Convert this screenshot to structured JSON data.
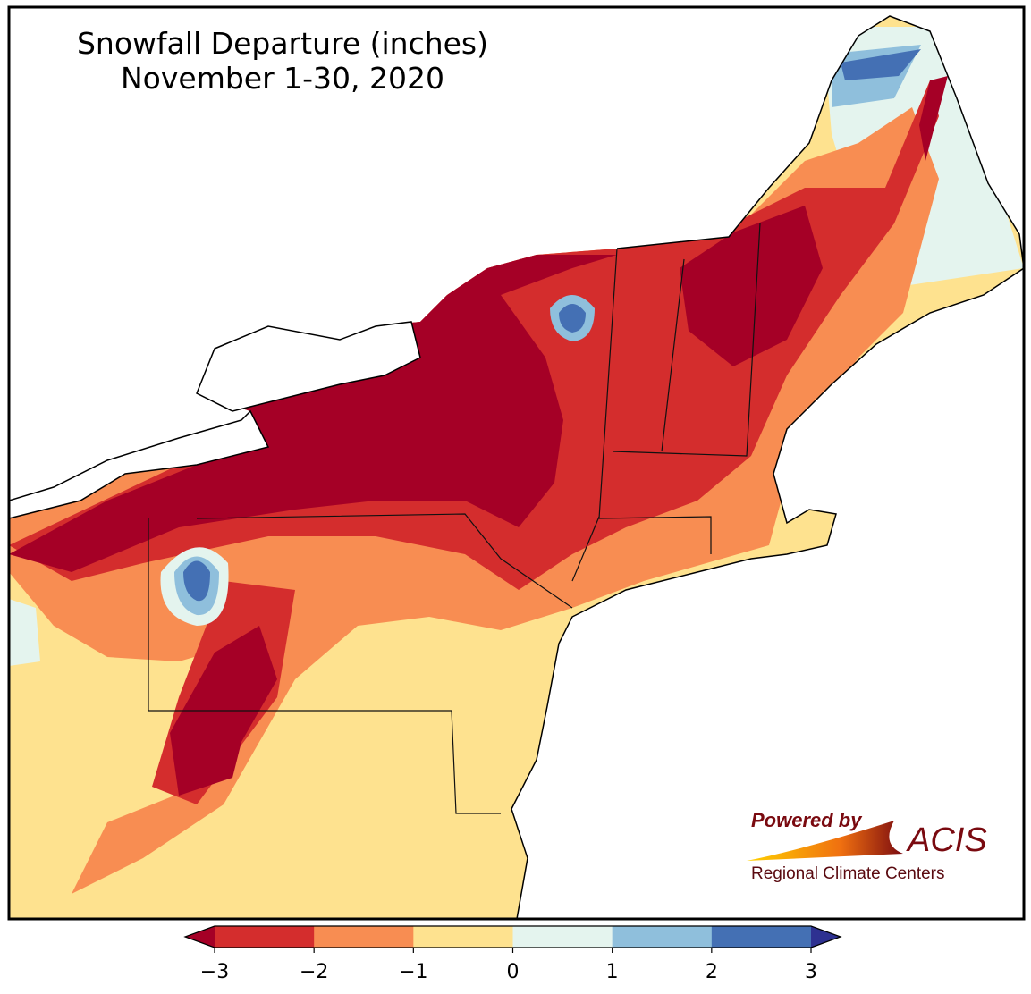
{
  "title": "Snowfall Departure (inches)",
  "subtitle": "November 1-30, 2020",
  "legend": {
    "lim": [
      -3,
      3
    ],
    "ticks": [
      {
        "value": -3,
        "label": "−3"
      },
      {
        "value": -2,
        "label": "−2"
      },
      {
        "value": -1,
        "label": "−1"
      },
      0,
      1,
      2,
      3
    ],
    "colors": [
      "#d42d2d",
      "#f88d52",
      "#fee28f",
      "#e4f4ee",
      "#8fbfdc",
      "#4470b4"
    ],
    "under_color": "#a50026",
    "over_color": "#2e3191"
  },
  "logo": {
    "powered": "Powered by",
    "name": "ACIS",
    "tagline": "Regional Climate Centers"
  }
}
